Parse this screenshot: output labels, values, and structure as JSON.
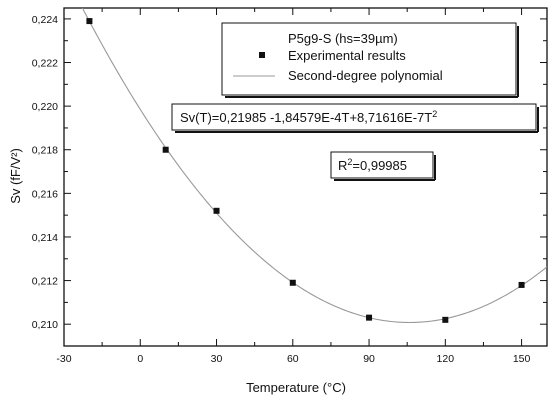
{
  "chart_data": {
    "type": "scatter",
    "xlabel": "Temperature   (°C)",
    "ylabel": "Sv   (fF/V²)",
    "xlim": [
      -30,
      160
    ],
    "ylim": [
      0.209,
      0.2245
    ],
    "x_ticks": [
      -30,
      0,
      30,
      60,
      90,
      120,
      150
    ],
    "x_tick_labels": [
      "-30",
      "0",
      "30",
      "60",
      "90",
      "120",
      "150"
    ],
    "y_ticks": [
      0.21,
      0.212,
      0.214,
      0.216,
      0.218,
      0.22,
      0.222,
      0.224
    ],
    "y_tick_labels": [
      "0,210",
      "0,212",
      "0,214",
      "0,216",
      "0,218",
      "0,220",
      "0,222",
      "0,224"
    ],
    "grid": false,
    "legend_position": "top-right",
    "legend": {
      "title": "P5g9-S (hs=39µm)",
      "entries": [
        "Experimental results",
        "Second-degree polynomial"
      ]
    },
    "equation": {
      "prefix": "Sv(T)=0,21985 -1,84579E-4T+8,71616E-7T",
      "superscript": "2"
    },
    "r_squared": {
      "prefix": "R",
      "superscript": "2",
      "suffix": "=0,99985"
    },
    "fit": {
      "name": "Second-degree polynomial",
      "coefficients": [
        0.21985,
        -0.000184579,
        8.71616e-07
      ],
      "x_range": [
        -30,
        160
      ]
    },
    "series": [
      {
        "name": "Experimental results",
        "x": [
          -20,
          10,
          30,
          60,
          90,
          120,
          150
        ],
        "y": [
          0.2239,
          0.218,
          0.2152,
          0.2119,
          0.2103,
          0.2102,
          0.2118
        ]
      }
    ],
    "colors": {
      "marker": "#111111",
      "fit_line": "#999999",
      "axis": "#111111"
    }
  }
}
